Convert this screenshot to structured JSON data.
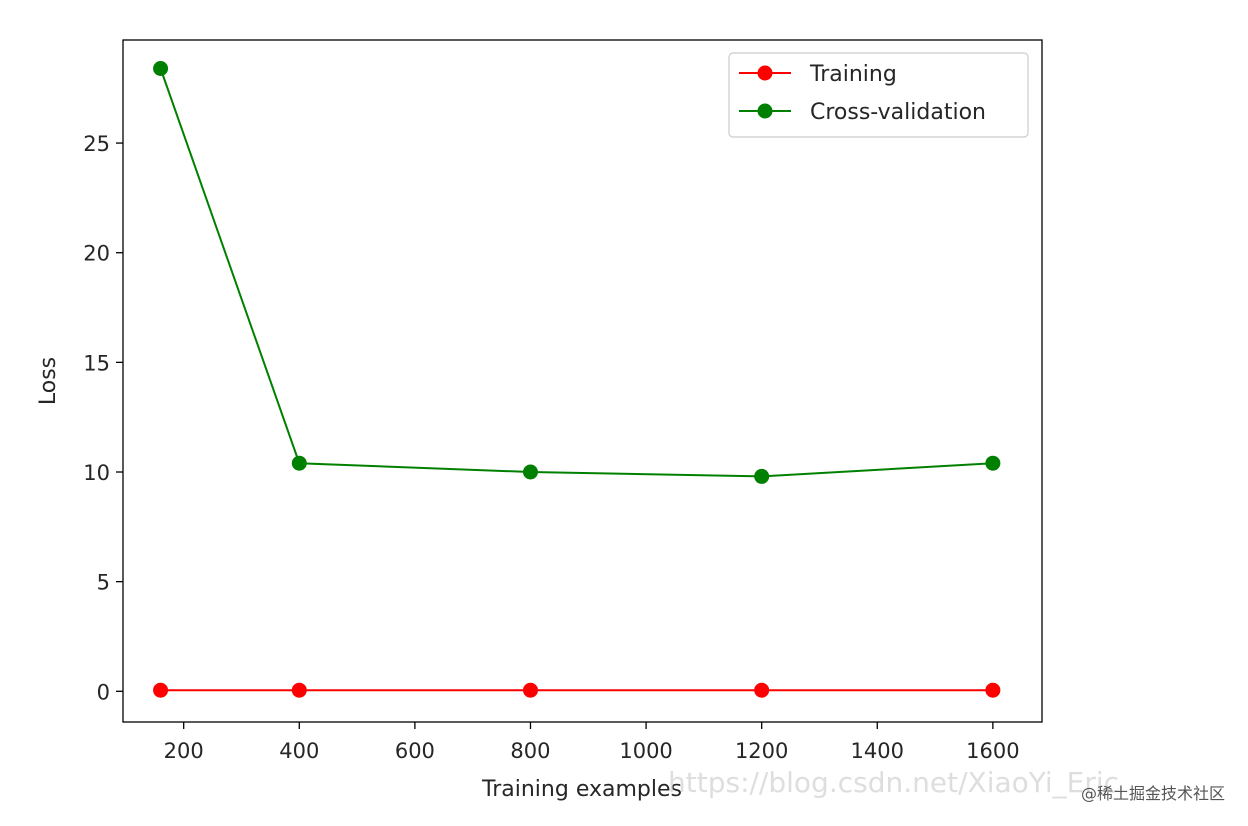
{
  "chart_data": {
    "type": "line",
    "title": "",
    "xlabel": "Training examples",
    "ylabel": "Loss",
    "xlim": [
      95,
      1685
    ],
    "ylim": [
      -1.4,
      29.7
    ],
    "xticks": [
      200,
      400,
      600,
      800,
      1000,
      1200,
      1400,
      1600
    ],
    "yticks": [
      0,
      5,
      10,
      15,
      20,
      25
    ],
    "x": [
      160,
      400,
      800,
      1200,
      1600
    ],
    "series": [
      {
        "name": "Training",
        "color": "#ff0000",
        "marker": "circle",
        "values": [
          0.05,
          0.05,
          0.05,
          0.05,
          0.05
        ]
      },
      {
        "name": "Cross-validation",
        "color": "#008000",
        "marker": "circle",
        "values": [
          28.4,
          10.4,
          10.0,
          9.8,
          10.4
        ]
      }
    ],
    "legend_position": "top-right",
    "grid": false
  },
  "watermark": {
    "url_text": "https://blog.csdn.net/XiaoYi_Eric",
    "site_text": "@稀土掘金技术社区"
  }
}
